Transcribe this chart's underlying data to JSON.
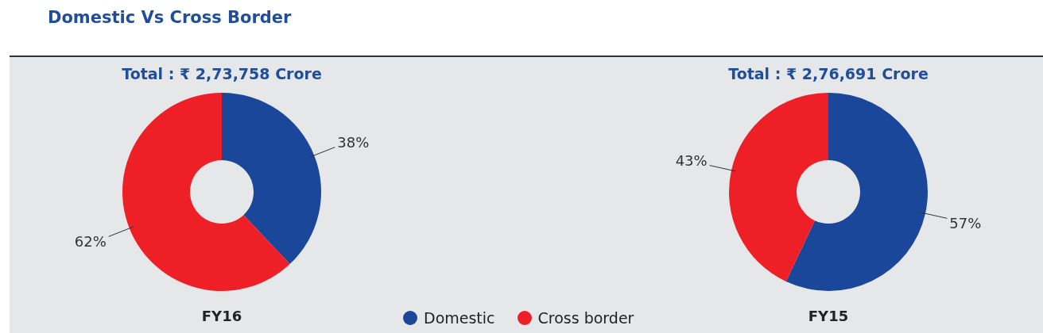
{
  "chart_data": [
    {
      "type": "donut",
      "title": "Domestic Vs Cross Border",
      "subtitle": "Total : ₹ 2,73,758 Crore",
      "xlabel": "FY16",
      "categories": [
        "Domestic",
        "Cross border"
      ],
      "values": [
        38,
        62
      ],
      "colors": [
        "#1a4799",
        "#ee1f26"
      ],
      "value_labels": [
        "38%",
        "62%"
      ],
      "legend": "bottom"
    },
    {
      "type": "donut",
      "subtitle": "Total : ₹ 2,76,691 Crore",
      "xlabel": "FY15",
      "categories": [
        null,
        null
      ],
      "values": [
        57,
        43
      ],
      "colors": [
        "#1a4799",
        "#ee1f26"
      ],
      "value_labels": [
        "57%",
        "43%"
      ]
    }
  ]
}
